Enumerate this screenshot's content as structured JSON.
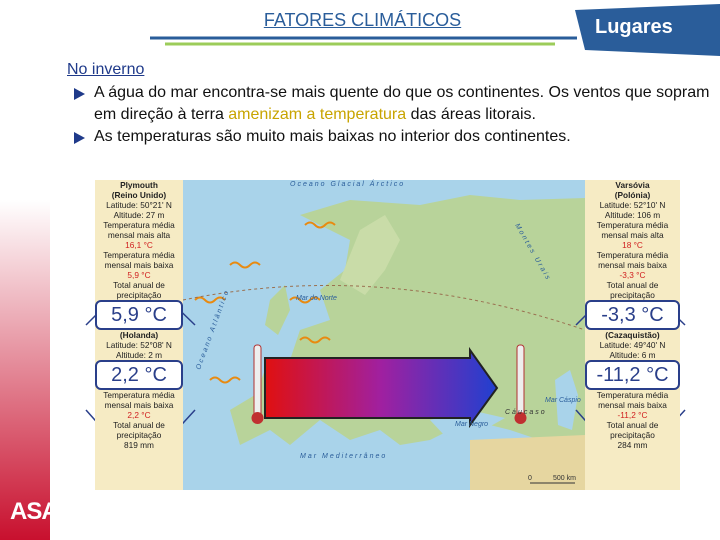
{
  "header": {
    "title": "FATORES CLIMÁTICOS",
    "tab": "Lugares"
  },
  "section": "No inverno",
  "bullets": [
    {
      "parts": [
        "A água do mar encontra-se mais quente do que os continentes. Os ventos que sopram em direção à terra ",
        "amenizam a temperatura",
        " das áreas litorais."
      ]
    },
    {
      "parts": [
        "As temperaturas são muito mais baixas no interior dos continentes."
      ]
    }
  ],
  "panels": [
    {
      "top": {
        "name": "Plymouth",
        "country": "(Reino Unido)",
        "latitude": "Latitude: 50°21' N",
        "altitude": "Altitude: 27 m",
        "max_label": "Temperatura média mensal mais alta",
        "max": "16,1 °C",
        "min_label": "Temperatura média mensal mais baixa",
        "min": "5,9 °C",
        "precip_label": "Total anual de precipitação"
      },
      "top_zoom": "5,9 °C",
      "bottom": {
        "country": "(Holanda)",
        "latitude": "Latitude: 52°08' N",
        "altitude": "Altitude: 2 m"
      },
      "bottom_zoom": "2,2 °C",
      "bottom_rest": {
        "min_label": "Temperatura média mensal mais baixa",
        "min": "2,2 °C",
        "precip_label": "Total anual de precipitação",
        "precip": "819 mm"
      }
    },
    {
      "top": {
        "name": "Varsóvia",
        "country": "(Polónia)",
        "latitude": "Latitude: 52°10' N",
        "altitude": "Altitude: 106 m",
        "max_label": "Temperatura média mensal mais alta",
        "max": "18 °C",
        "min_label": "Temperatura média mensal mais baixa",
        "min": "-3,3 °C",
        "precip_label": "Total anual de precipitação"
      },
      "top_zoom": "-3,3 °C",
      "bottom": {
        "country": "(Cazaquistão)",
        "latitude": "Latitude: 49°40' N",
        "altitude": "Altitude: 6 m"
      },
      "bottom_zoom": "-11,2 °C",
      "bottom_rest": {
        "min_label": "Temperatura média mensal mais baixa",
        "min": "-11,2 °C",
        "precip_label": "Total anual de precipitação",
        "precip": "284 mm"
      }
    }
  ],
  "map_labels": {
    "arctic": "Oceano Glacial Árctico",
    "urals": "Montes Urais",
    "north_sea": "Mar do Norte",
    "atlantic": "Oceano Atlântico",
    "black_sea": "Mar Negro",
    "mediterranean": "Mar Mediterrâneo",
    "caucasus": "Cáucaso",
    "caspian": "Mar Cáspio",
    "scale_zero": "0",
    "scale": "500 km"
  },
  "logo": "ASA"
}
